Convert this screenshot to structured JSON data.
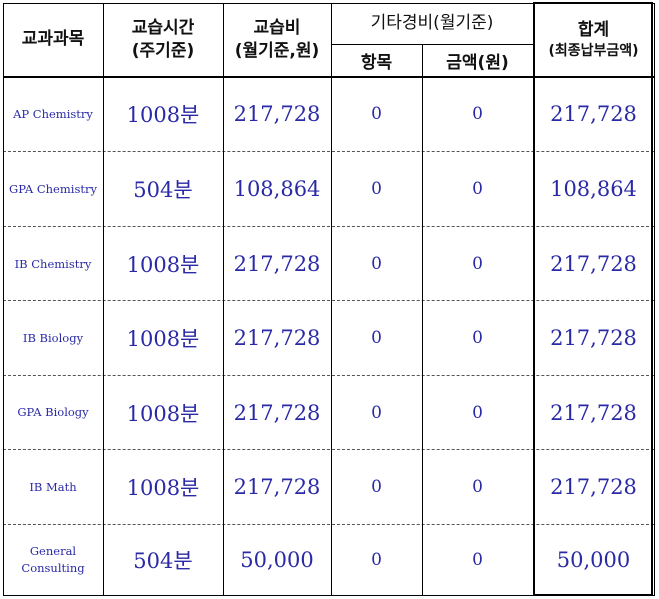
{
  "headers": {
    "subject": "교과과목",
    "hours_line1": "교습시간",
    "hours_line2": "(주기준)",
    "fee_line1": "교습비",
    "fee_line2": "(월기준,원)",
    "other": "기타경비(월기준)",
    "other_item": "항목",
    "other_amount": "금액(원)",
    "total_line1": "합계",
    "total_line2": "(최종납부금액)"
  },
  "rows": [
    {
      "subject": [
        "AP Chemistry"
      ],
      "hours": "1008분",
      "fee": "217,728",
      "item": "0",
      "amount": "0",
      "total": "217,728"
    },
    {
      "subject": [
        "GPA Chemistry"
      ],
      "hours": "504분",
      "fee": "108,864",
      "item": "0",
      "amount": "0",
      "total": "108,864"
    },
    {
      "subject": [
        "IB Chemistry"
      ],
      "hours": "1008분",
      "fee": "217,728",
      "item": "0",
      "amount": "0",
      "total": "217,728"
    },
    {
      "subject": [
        "IB Biology"
      ],
      "hours": "1008분",
      "fee": "217,728",
      "item": "0",
      "amount": "0",
      "total": "217,728"
    },
    {
      "subject": [
        "GPA Biology"
      ],
      "hours": "1008분",
      "fee": "217,728",
      "item": "0",
      "amount": "0",
      "total": "217,728"
    },
    {
      "subject": [
        "IB Math"
      ],
      "hours": "1008분",
      "fee": "217,728",
      "item": "0",
      "amount": "0",
      "total": "217,728"
    },
    {
      "subject": [
        "General",
        "Consulting"
      ],
      "hours": "504분",
      "fee": "50,000",
      "item": "0",
      "amount": "0",
      "total": "50,000"
    }
  ]
}
